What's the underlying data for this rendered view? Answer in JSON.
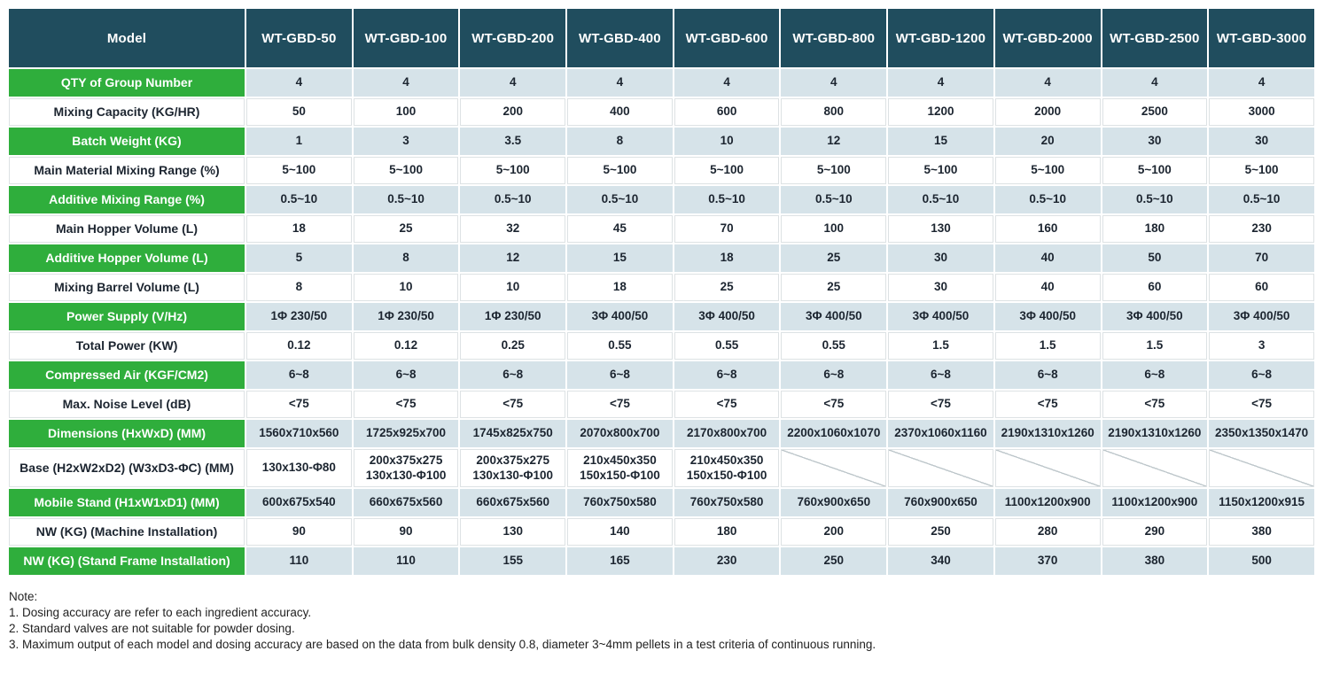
{
  "table": {
    "header": {
      "model_label": "Model",
      "columns": [
        "WT-GBD-50",
        "WT-GBD-100",
        "WT-GBD-200",
        "WT-GBD-400",
        "WT-GBD-600",
        "WT-GBD-800",
        "WT-GBD-1200",
        "WT-GBD-2000",
        "WT-GBD-2500",
        "WT-GBD-3000"
      ]
    },
    "rows": [
      {
        "label": "QTY of Group Number",
        "style": "green",
        "values": [
          "4",
          "4",
          "4",
          "4",
          "4",
          "4",
          "4",
          "4",
          "4",
          "4"
        ]
      },
      {
        "label": "Mixing Capacity (KG/HR)",
        "style": "white",
        "values": [
          "50",
          "100",
          "200",
          "400",
          "600",
          "800",
          "1200",
          "2000",
          "2500",
          "3000"
        ]
      },
      {
        "label": "Batch Weight (KG)",
        "style": "green",
        "values": [
          "1",
          "3",
          "3.5",
          "8",
          "10",
          "12",
          "15",
          "20",
          "30",
          "30"
        ]
      },
      {
        "label": "Main Material Mixing Range (%)",
        "style": "white",
        "values": [
          "5~100",
          "5~100",
          "5~100",
          "5~100",
          "5~100",
          "5~100",
          "5~100",
          "5~100",
          "5~100",
          "5~100"
        ]
      },
      {
        "label": "Additive Mixing Range (%)",
        "style": "green",
        "values": [
          "0.5~10",
          "0.5~10",
          "0.5~10",
          "0.5~10",
          "0.5~10",
          "0.5~10",
          "0.5~10",
          "0.5~10",
          "0.5~10",
          "0.5~10"
        ]
      },
      {
        "label": "Main Hopper Volume (L)",
        "style": "white",
        "values": [
          "18",
          "25",
          "32",
          "45",
          "70",
          "100",
          "130",
          "160",
          "180",
          "230"
        ]
      },
      {
        "label": "Additive Hopper Volume (L)",
        "style": "green",
        "values": [
          "5",
          "8",
          "12",
          "15",
          "18",
          "25",
          "30",
          "40",
          "50",
          "70"
        ]
      },
      {
        "label": "Mixing Barrel Volume (L)",
        "style": "white",
        "values": [
          "8",
          "10",
          "10",
          "18",
          "25",
          "25",
          "30",
          "40",
          "60",
          "60"
        ]
      },
      {
        "label": "Power Supply (V/Hz)",
        "style": "green",
        "values": [
          "1Φ 230/50",
          "1Φ 230/50",
          "1Φ 230/50",
          "3Φ 400/50",
          "3Φ 400/50",
          "3Φ 400/50",
          "3Φ 400/50",
          "3Φ 400/50",
          "3Φ 400/50",
          "3Φ 400/50"
        ]
      },
      {
        "label": "Total Power (KW)",
        "style": "white",
        "values": [
          "0.12",
          "0.12",
          "0.25",
          "0.55",
          "0.55",
          "0.55",
          "1.5",
          "1.5",
          "1.5",
          "3"
        ]
      },
      {
        "label": "Compressed Air (KGF/CM2)",
        "style": "green",
        "values": [
          "6~8",
          "6~8",
          "6~8",
          "6~8",
          "6~8",
          "6~8",
          "6~8",
          "6~8",
          "6~8",
          "6~8"
        ]
      },
      {
        "label": "Max. Noise Level (dB)",
        "style": "white",
        "values": [
          "<75",
          "<75",
          "<75",
          "<75",
          "<75",
          "<75",
          "<75",
          "<75",
          "<75",
          "<75"
        ]
      },
      {
        "label": "Dimensions (HxWxD) (MM)",
        "style": "green",
        "values": [
          "1560x710x560",
          "1725x925x700",
          "1745x825x750",
          "2070x800x700",
          "2170x800x700",
          "2200x1060x1070",
          "2370x1060x1160",
          "2190x1310x1260",
          "2190x1310x1260",
          "2350x1350x1470"
        ]
      },
      {
        "label": "Base (H2xW2xD2) (W3xD3-ΦC) (MM)",
        "style": "white",
        "tall": true,
        "values": [
          "130x130-Φ80",
          "200x375x275\n130x130-Φ100",
          "200x375x275\n130x130-Φ100",
          "210x450x350\n150x150-Φ100",
          "210x450x350\n150x150-Φ100",
          null,
          null,
          null,
          null,
          null
        ]
      },
      {
        "label": "Mobile Stand (H1xW1xD1) (MM)",
        "style": "green",
        "values": [
          "600x675x540",
          "660x675x560",
          "660x675x560",
          "760x750x580",
          "760x750x580",
          "760x900x650",
          "760x900x650",
          "1100x1200x900",
          "1100x1200x900",
          "1150x1200x915"
        ]
      },
      {
        "label": "NW (KG) (Machine Installation)",
        "style": "white",
        "values": [
          "90",
          "90",
          "130",
          "140",
          "180",
          "200",
          "250",
          "280",
          "290",
          "380"
        ]
      },
      {
        "label": "NW (KG) (Stand Frame Installation)",
        "style": "green",
        "values": [
          "110",
          "110",
          "155",
          "165",
          "230",
          "250",
          "340",
          "370",
          "380",
          "500"
        ]
      }
    ]
  },
  "notes": {
    "title": "Note:",
    "items": [
      "1. Dosing accuracy are refer to each ingredient accuracy.",
      "2. Standard valves are not suitable for powder dosing.",
      "3. Maximum output of each model and dosing accuracy are based on the data from bulk density 0.8, diameter 3~4mm pellets in a test criteria of continuous running."
    ]
  },
  "colors": {
    "header_bg": "#204D5E",
    "green": "#2FAE3C",
    "light_blue": "#D6E3E9",
    "text_dark": "#1C2530",
    "grid_gray": "#DDE2E4",
    "diag_line": "#BEC7CB"
  }
}
